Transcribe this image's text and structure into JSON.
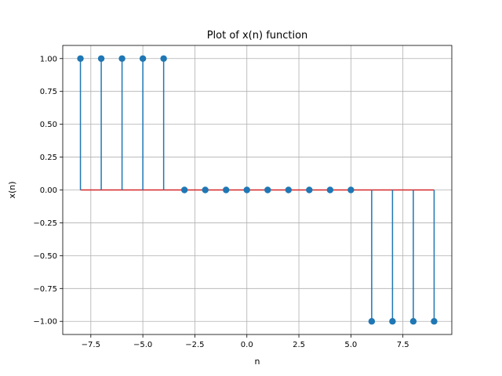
{
  "chart_data": {
    "type": "stem",
    "title": "Plot of x(n) function",
    "xlabel": "n",
    "ylabel": "x(n)",
    "xlim": [
      -8.85,
      9.85
    ],
    "ylim": [
      -1.1,
      1.1
    ],
    "xticks": [
      -7.5,
      -5.0,
      -2.5,
      0.0,
      2.5,
      5.0,
      7.5
    ],
    "xtick_labels": [
      "−7.5",
      "−5.0",
      "−2.5",
      "0.0",
      "2.5",
      "5.0",
      "7.5"
    ],
    "yticks": [
      -1.0,
      -0.75,
      -0.5,
      -0.25,
      0.0,
      0.25,
      0.5,
      0.75,
      1.0
    ],
    "ytick_labels": [
      "−1.00",
      "−0.75",
      "−0.50",
      "−0.25",
      "0.00",
      "0.25",
      "0.50",
      "0.75",
      "1.00"
    ],
    "grid": true,
    "baseline": 0,
    "x": [
      -8,
      -7,
      -6,
      -5,
      -4,
      -3,
      -2,
      -1,
      0,
      1,
      2,
      3,
      4,
      5,
      6,
      7,
      8,
      9
    ],
    "y": [
      1,
      1,
      1,
      1,
      1,
      0,
      0,
      0,
      0,
      0,
      0,
      0,
      0,
      0,
      -1,
      -1,
      -1,
      -1
    ],
    "colors": {
      "stem": "#1f77b4",
      "baseline": "#d62728",
      "grid": "#b0b0b0",
      "axes": "#000000"
    }
  }
}
